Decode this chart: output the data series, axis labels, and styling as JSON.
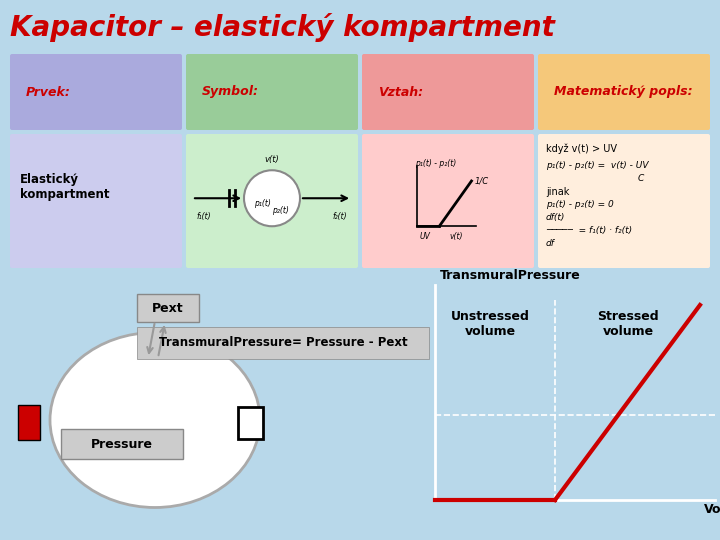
{
  "title": "Kapacitor – elastický kompartment",
  "title_color": "#cc0000",
  "title_fontsize": 20,
  "slide_bg": "#b8d8ea",
  "table_headers": [
    "Prvek:",
    "Symbol:",
    "Vztah:",
    "Matematický popls:"
  ],
  "table_header_colors": [
    "#aaaadd",
    "#99cc99",
    "#ee9999",
    "#f5c87a"
  ],
  "table_header_text_colors": [
    "#cc0000",
    "#cc0000",
    "#cc0000",
    "#cc0000"
  ],
  "row_label": "Elastický\nkompartment",
  "row_bg_col1": "#ccccee",
  "row_bg_col2": "#cceecc",
  "row_bg_col3": "#ffcccc",
  "row_bg_col4": "#ffeedd",
  "graph_ylabel": "TransmuralPressure",
  "graph_xlabel": "Volume",
  "unstressed_label": "Unstressed\nvolume",
  "stressed_label": "Stressed\nvolume",
  "pext_label": "Pext",
  "transmural_label": "TransmuralPressure= Pressure - Pext",
  "pressure_label": "Pressure",
  "line_color": "#cc0000",
  "white_line_color": "white",
  "arrow_color": "#999999"
}
